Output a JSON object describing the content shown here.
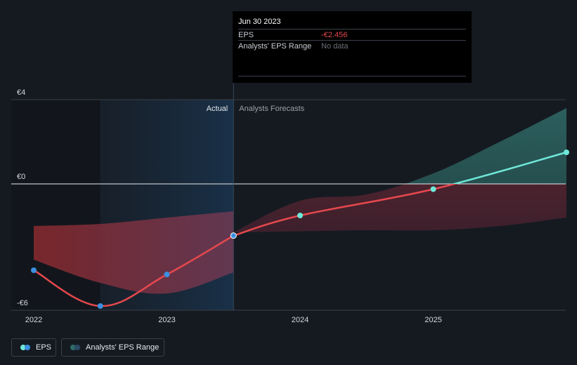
{
  "chart_data": {
    "type": "line",
    "y_unit": "€",
    "y_ticks": [
      {
        "value": 4,
        "label": "€4"
      },
      {
        "value": 0,
        "label": "€0"
      },
      {
        "value": -6,
        "label": "-€6"
      }
    ],
    "ylim": [
      -6,
      4
    ],
    "x_ticks": [
      {
        "value": 2022.0,
        "label": "2022"
      },
      {
        "value": 2023.0,
        "label": "2023"
      },
      {
        "value": 2024.0,
        "label": "2024"
      },
      {
        "value": 2025.0,
        "label": "2025"
      }
    ],
    "xlim": [
      2021.83,
      2026.0
    ],
    "actual_end": 2023.5,
    "section_labels": {
      "actual": "Actual",
      "forecast": "Analysts Forecasts"
    },
    "series": [
      {
        "name": "EPS",
        "color_actual": "#e5484d",
        "color_positive": "#6ee7d8",
        "actual_points": [
          {
            "x": 2022.0,
            "y": -4.1
          },
          {
            "x": 2022.5,
            "y": -5.8
          },
          {
            "x": 2023.0,
            "y": -4.3
          },
          {
            "x": 2023.5,
            "y": -2.456
          }
        ],
        "forecast_points": [
          {
            "x": 2023.5,
            "y": -2.456
          },
          {
            "x": 2024.0,
            "y": -1.5
          },
          {
            "x": 2025.0,
            "y": -0.25
          },
          {
            "x": 2026.0,
            "y": 1.5
          }
        ]
      }
    ],
    "range_band": {
      "name": "Analysts' EPS Range",
      "actual_upper": [
        [
          2022.0,
          -2.0
        ],
        [
          2022.5,
          -1.9
        ],
        [
          2023.0,
          -1.6
        ],
        [
          2023.5,
          -1.3
        ]
      ],
      "actual_lower": [
        [
          2022.0,
          -3.6
        ],
        [
          2022.5,
          -4.7
        ],
        [
          2023.0,
          -5.2
        ],
        [
          2023.5,
          -4.2
        ]
      ],
      "forecast_upper": [
        [
          2023.5,
          -2.3
        ],
        [
          2024.0,
          -0.8
        ],
        [
          2024.5,
          -0.5
        ],
        [
          2025.0,
          0.5
        ],
        [
          2025.5,
          2.0
        ],
        [
          2026.0,
          3.6
        ]
      ],
      "forecast_lower": [
        [
          2023.5,
          -2.3
        ],
        [
          2024.0,
          -2.25
        ],
        [
          2024.5,
          -2.2
        ],
        [
          2025.0,
          -2.2
        ],
        [
          2025.5,
          -2.0
        ],
        [
          2026.0,
          -1.6
        ]
      ]
    }
  },
  "tooltip": {
    "date": "Jun 30 2023",
    "eps_label": "EPS",
    "eps_value": "-€2.456",
    "range_label": "Analysts' EPS Range",
    "range_value": "No data"
  },
  "legend": {
    "eps_label": "EPS",
    "range_label": "Analysts' EPS Range"
  },
  "colors": {
    "background": "#151a21",
    "negative": "#e5484d",
    "positive": "#6ee7d8",
    "point_actual": "#3b8fe0"
  }
}
